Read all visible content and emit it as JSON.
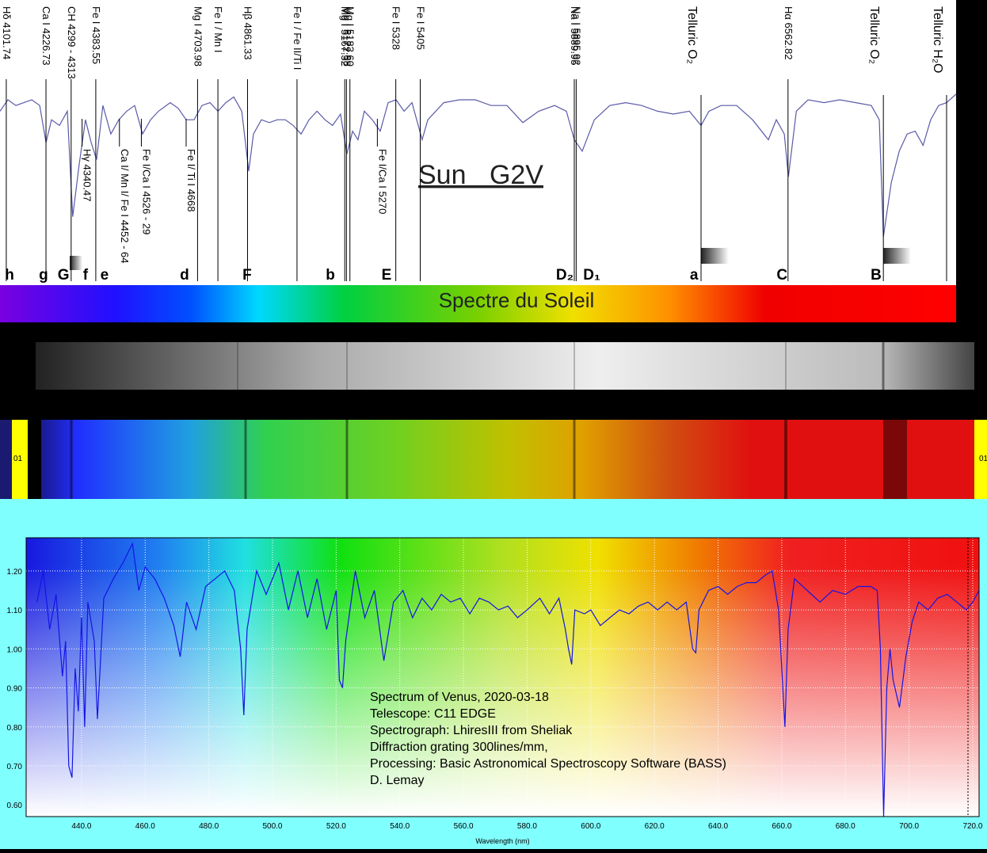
{
  "chart_data": [
    {
      "type": "line",
      "title": "Sun G2V",
      "color": "#5a5aa8",
      "xlim": [
        4082,
        7092
      ],
      "ylim": [
        0,
        1
      ],
      "x": [
        4082,
        4107,
        4132,
        4157,
        4182,
        4207,
        4227,
        4244,
        4269,
        4294,
        4311,
        4331,
        4351,
        4369,
        4386,
        4406,
        4431,
        4456,
        4481,
        4506,
        4531,
        4556,
        4581,
        4618,
        4643,
        4668,
        4693,
        4718,
        4743,
        4768,
        4793,
        4818,
        4843,
        4865,
        4880,
        4905,
        4930,
        4955,
        4980,
        5005,
        5030,
        5055,
        5080,
        5105,
        5129,
        5154,
        5174,
        5192,
        5209,
        5229,
        5254,
        5279,
        5304,
        5329,
        5354,
        5379,
        5411,
        5429,
        5479,
        5529,
        5578,
        5628,
        5678,
        5728,
        5778,
        5828,
        5865,
        5890,
        5915,
        5953,
        6002,
        6052,
        6102,
        6152,
        6202,
        6252,
        6289,
        6314,
        6352,
        6401,
        6451,
        6501,
        6526,
        6551,
        6564,
        6589,
        6626,
        6676,
        6726,
        6776,
        6825,
        6850,
        6863,
        6888,
        6913,
        6938,
        6963,
        6988,
        7012,
        7037,
        7062,
        7092
      ],
      "values": [
        0.61,
        0.65,
        0.63,
        0.64,
        0.65,
        0.63,
        0.5,
        0.58,
        0.56,
        0.61,
        0.24,
        0.42,
        0.58,
        0.5,
        0.44,
        0.63,
        0.53,
        0.58,
        0.61,
        0.63,
        0.53,
        0.58,
        0.61,
        0.64,
        0.62,
        0.58,
        0.58,
        0.63,
        0.64,
        0.61,
        0.64,
        0.66,
        0.61,
        0.4,
        0.53,
        0.58,
        0.57,
        0.58,
        0.58,
        0.56,
        0.53,
        0.58,
        0.61,
        0.58,
        0.56,
        0.6,
        0.46,
        0.54,
        0.51,
        0.61,
        0.58,
        0.54,
        0.64,
        0.65,
        0.61,
        0.64,
        0.51,
        0.58,
        0.64,
        0.65,
        0.65,
        0.63,
        0.63,
        0.57,
        0.61,
        0.63,
        0.61,
        0.51,
        0.47,
        0.58,
        0.63,
        0.64,
        0.63,
        0.61,
        0.6,
        0.61,
        0.56,
        0.61,
        0.63,
        0.63,
        0.58,
        0.51,
        0.58,
        0.53,
        0.38,
        0.61,
        0.65,
        0.64,
        0.65,
        0.64,
        0.63,
        0.58,
        0.17,
        0.36,
        0.47,
        0.53,
        0.54,
        0.49,
        0.58,
        0.63,
        0.64,
        0.67
      ],
      "upper_lines": [
        {
          "label": "Hδ 4101.74",
          "wavelength": 4101.74
        },
        {
          "label": "Ca I 4226.73",
          "wavelength": 4226.73
        },
        {
          "label": "CH 4299 - 4313",
          "wavelength": 4306
        },
        {
          "label": "Fe I 4383.55",
          "wavelength": 4383.55
        },
        {
          "label": "Mg I 4703.98",
          "wavelength": 4703.98
        },
        {
          "label": "Fe I / Mn I",
          "wavelength": 4768
        },
        {
          "label": "Hβ 4861.33",
          "wavelength": 4861.33
        },
        {
          "label": "Fe I / Fe II/Ti I",
          "wavelength": 5017
        },
        {
          "label": "Mg I 5167.32",
          "wavelength": 5167.32
        },
        {
          "label": "Mg I 5172.68",
          "wavelength": 5172.68
        },
        {
          "label": "Mg I 5183.60",
          "wavelength": 5183.6
        },
        {
          "label": "Fe I 5328",
          "wavelength": 5328
        },
        {
          "label": "Fe I 5405",
          "wavelength": 5405
        },
        {
          "label": "Na I 5889.95",
          "wavelength": 5889.95
        },
        {
          "label": "Na I 5895.92",
          "wavelength": 5895.92
        },
        {
          "label": "Telluric O₂",
          "wavelength": 6289
        },
        {
          "label": "Hα 6562.82",
          "wavelength": 6562.82
        },
        {
          "label": "Telluric O₂",
          "wavelength": 6863
        },
        {
          "label": "Telluric H₂O",
          "wavelength": 7062
        }
      ],
      "lower_lines": [
        {
          "label": "Hγ 4340.47",
          "wavelength": 4340.47
        },
        {
          "label": "Ca I/ Mn I/ Fe I 4452 - 64",
          "wavelength": 4458
        },
        {
          "label": "Fe I/Ca I 4526 - 29",
          "wavelength": 4527
        },
        {
          "label": "Fe I/ Ti I 4668",
          "wavelength": 4668
        },
        {
          "label": "Fe I/Ca I  5270",
          "wavelength": 5270
        }
      ],
      "fraunhofer": [
        {
          "label": "h",
          "wavelength": 4112
        },
        {
          "label": "g",
          "wavelength": 4219
        },
        {
          "label": "G",
          "wavelength": 4282
        },
        {
          "label": "f",
          "wavelength": 4351
        },
        {
          "label": "e",
          "wavelength": 4411
        },
        {
          "label": "d",
          "wavelength": 4663
        },
        {
          "label": "F",
          "wavelength": 4860
        },
        {
          "label": "b",
          "wavelength": 5122
        },
        {
          "label": "E",
          "wavelength": 5299
        },
        {
          "label": "D₂",
          "wavelength": 5860
        },
        {
          "label": "D₁",
          "wavelength": 5945
        },
        {
          "label": "a",
          "wavelength": 6267
        },
        {
          "label": "C",
          "wavelength": 6544
        },
        {
          "label": "B",
          "wavelength": 6840
        }
      ]
    },
    {
      "type": "line",
      "color": "#1414e6",
      "grid": true,
      "x_label": "Wavelength (nm)",
      "annotations": [
        "Spectrum of Venus, 2020-03-18",
        "Telescope: C11 EDGE",
        "Spectrograph: LhiresIII from Sheliak",
        "Diffraction grating 300lines/mm,",
        "Processing: Basic Astronomical Spectroscopy Software (BASS)",
        "D. Lemay"
      ],
      "xlim": [
        422.6,
        722
      ],
      "ylim": [
        0.57,
        1.285
      ],
      "xticks": [
        {
          "value": 440,
          "label": "440.0"
        },
        {
          "value": 460,
          "label": "460.0"
        },
        {
          "value": 480,
          "label": "480.0"
        },
        {
          "value": 500,
          "label": "500.0"
        },
        {
          "value": 520,
          "label": "520.0"
        },
        {
          "value": 540,
          "label": "540.0"
        },
        {
          "value": 560,
          "label": "560.0"
        },
        {
          "value": 580,
          "label": "580.0"
        },
        {
          "value": 600,
          "label": "600.0"
        },
        {
          "value": 620,
          "label": "620.0"
        },
        {
          "value": 640,
          "label": "640.0"
        },
        {
          "value": 660,
          "label": "660.0"
        },
        {
          "value": 680,
          "label": "680.0"
        },
        {
          "value": 700,
          "label": "700.0"
        },
        {
          "value": 720,
          "label": "720.0"
        }
      ],
      "yticks": [
        {
          "value": 0.6,
          "label": "0.60"
        },
        {
          "value": 0.7,
          "label": "0.70"
        },
        {
          "value": 0.8,
          "label": "0.80"
        },
        {
          "value": 0.9,
          "label": "0.90"
        },
        {
          "value": 1.0,
          "label": "1.00"
        },
        {
          "value": 1.1,
          "label": "1.10"
        },
        {
          "value": 1.2,
          "label": "1.20"
        }
      ],
      "x": [
        426,
        428,
        430,
        432,
        434,
        435,
        436,
        437,
        438,
        439,
        440,
        441,
        442,
        444,
        445,
        447,
        450,
        453,
        456,
        458,
        460,
        463,
        466,
        469,
        471,
        473,
        476,
        479,
        482,
        485,
        488,
        490,
        491,
        492,
        495,
        498,
        502,
        505,
        508,
        511,
        514,
        517,
        520,
        521,
        522,
        523,
        526,
        529,
        532,
        535,
        538,
        541,
        544,
        547,
        550,
        553,
        556,
        559,
        562,
        565,
        568,
        571,
        574,
        577,
        580,
        584,
        587,
        590,
        592,
        593,
        594,
        595,
        598,
        600,
        603,
        606,
        609,
        612,
        615,
        618,
        621,
        624,
        627,
        630,
        632,
        633,
        634,
        637,
        640,
        643,
        646,
        649,
        652,
        655,
        657,
        659,
        660,
        661,
        662,
        664,
        668,
        672,
        676,
        680,
        684,
        688,
        690,
        691,
        692,
        693,
        694,
        695,
        697,
        699,
        701,
        703,
        706,
        709,
        712,
        715,
        718,
        720,
        722
      ],
      "values": [
        1.12,
        1.2,
        1.05,
        1.14,
        0.93,
        1.02,
        0.7,
        0.67,
        0.95,
        0.84,
        1.08,
        0.8,
        1.12,
        1.02,
        0.82,
        1.13,
        1.18,
        1.22,
        1.27,
        1.15,
        1.21,
        1.18,
        1.13,
        1.06,
        0.98,
        1.12,
        1.05,
        1.16,
        1.18,
        1.2,
        1.15,
        1.0,
        0.83,
        1.05,
        1.2,
        1.14,
        1.22,
        1.1,
        1.2,
        1.08,
        1.18,
        1.05,
        1.15,
        0.92,
        0.9,
        1.02,
        1.2,
        1.08,
        1.15,
        0.97,
        1.12,
        1.15,
        1.08,
        1.13,
        1.1,
        1.14,
        1.12,
        1.13,
        1.09,
        1.13,
        1.12,
        1.1,
        1.11,
        1.08,
        1.1,
        1.13,
        1.09,
        1.13,
        1.05,
        1.0,
        0.96,
        1.1,
        1.09,
        1.1,
        1.06,
        1.08,
        1.1,
        1.09,
        1.11,
        1.12,
        1.1,
        1.12,
        1.1,
        1.12,
        1.0,
        0.99,
        1.1,
        1.15,
        1.16,
        1.14,
        1.16,
        1.17,
        1.17,
        1.19,
        1.2,
        1.1,
        0.95,
        0.8,
        1.05,
        1.18,
        1.15,
        1.12,
        1.15,
        1.14,
        1.16,
        1.16,
        1.15,
        1.0,
        0.57,
        0.9,
        1.0,
        0.92,
        0.85,
        0.98,
        1.07,
        1.12,
        1.1,
        1.13,
        1.14,
        1.12,
        1.1,
        1.12,
        1.15
      ]
    }
  ],
  "bands": {
    "title": "Spectre du Soleil",
    "left_label": "01",
    "right_label": "01"
  }
}
